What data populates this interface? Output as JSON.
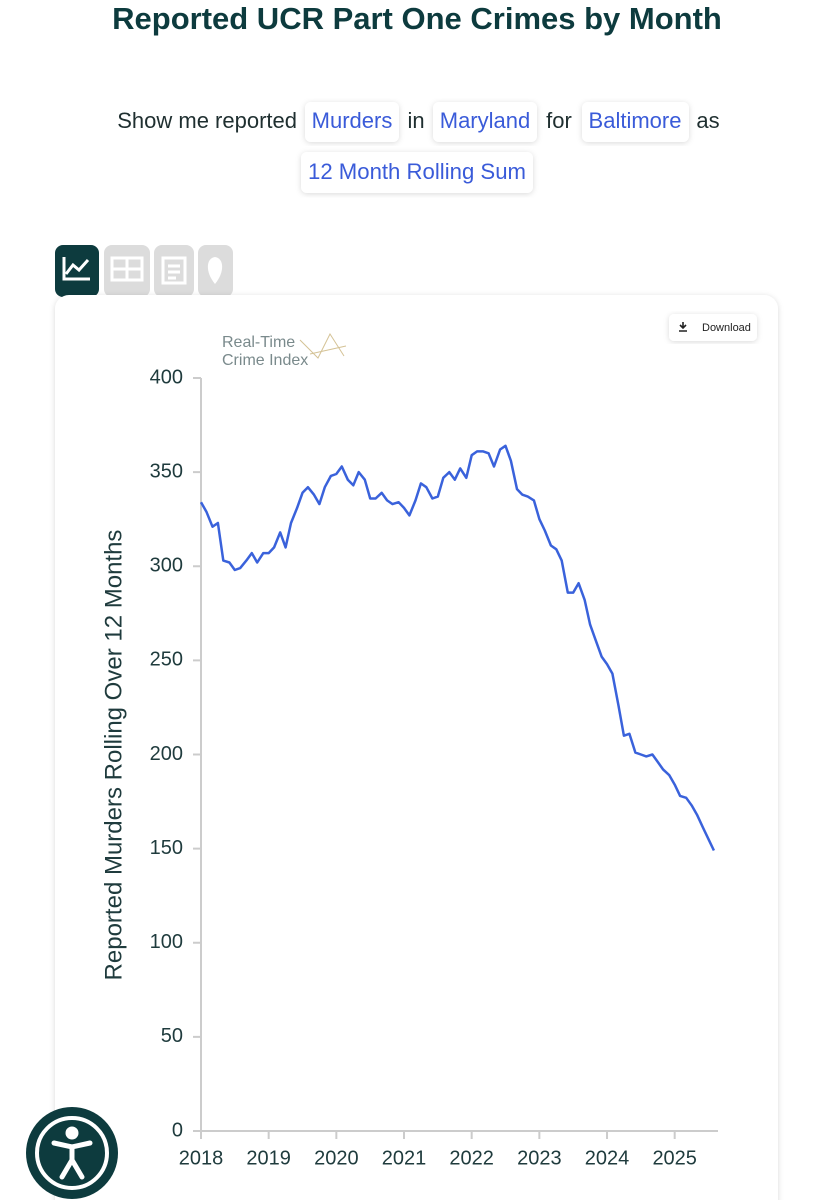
{
  "header": {
    "title": "Reported UCR Part One Crimes by Month"
  },
  "query": {
    "prefix": "Show me reported",
    "chips": [
      "Murders",
      "Maryland",
      "Baltimore",
      "12 Month Rolling Sum"
    ],
    "connectors": [
      "in",
      "for",
      "as"
    ]
  },
  "download": "Download",
  "logo": [
    "Real-Time",
    "Crime Index"
  ],
  "chart_data": {
    "type": "line",
    "ylabel": "Reported Murders Rolling Over 12 Months",
    "color": "#3a62db",
    "x": [
      2018,
      2018.08,
      2018.17,
      2018.25,
      2018.33,
      2018.42,
      2018.5,
      2018.58,
      2018.67,
      2018.75,
      2018.83,
      2018.92,
      2019,
      2019.08,
      2019.17,
      2019.25,
      2019.33,
      2019.42,
      2019.5,
      2019.58,
      2019.67,
      2019.75,
      2019.83,
      2019.92,
      2020,
      2020.08,
      2020.17,
      2020.25,
      2020.33,
      2020.42,
      2020.5,
      2020.58,
      2020.67,
      2020.75,
      2020.83,
      2020.92,
      2021,
      2021.08,
      2021.17,
      2021.25,
      2021.33,
      2021.42,
      2021.5,
      2021.58,
      2021.67,
      2021.75,
      2021.83,
      2021.92,
      2022,
      2022.08,
      2022.17,
      2022.25,
      2022.33,
      2022.42,
      2022.5,
      2022.58,
      2022.67,
      2022.75,
      2022.83,
      2022.92,
      2023,
      2023.08,
      2023.17,
      2023.25,
      2023.33,
      2023.42,
      2023.5,
      2023.58,
      2023.67,
      2023.75,
      2023.83,
      2023.92,
      2024,
      2024.08,
      2024.17,
      2024.25,
      2024.33,
      2024.42,
      2024.5,
      2024.58,
      2024.67,
      2024.75,
      2024.83,
      2024.92,
      2025,
      2025.08,
      2025.17,
      2025.25,
      2025.33,
      2025.42,
      2025.5,
      2025.58
    ],
    "values": [
      334,
      329,
      321,
      323,
      303,
      302,
      298,
      299,
      303,
      307,
      302,
      307,
      307,
      310,
      318,
      310,
      323,
      331,
      339,
      342,
      338,
      333,
      342,
      348,
      349,
      353,
      346,
      343,
      350,
      346,
      336,
      336,
      339,
      335,
      333,
      334,
      331,
      327,
      335,
      344,
      342,
      336,
      337,
      347,
      350,
      346,
      352,
      347,
      359,
      361,
      361,
      360,
      353,
      362,
      364,
      356,
      341,
      338,
      337,
      335,
      325,
      319,
      311,
      309,
      303,
      286,
      286,
      291,
      282,
      269,
      261,
      252,
      248,
      243,
      226,
      210,
      211,
      201,
      200,
      199,
      200,
      196,
      192,
      189,
      184,
      178,
      177,
      173,
      168,
      161,
      155,
      149
    ],
    "xlim": [
      2018,
      2025.64
    ],
    "xticks": [
      2018,
      2019,
      2020,
      2021,
      2022,
      2023,
      2024,
      2025
    ],
    "ylim": [
      0,
      400
    ],
    "yticks": [
      0,
      50,
      100,
      150,
      200,
      250,
      300,
      350,
      400
    ]
  }
}
